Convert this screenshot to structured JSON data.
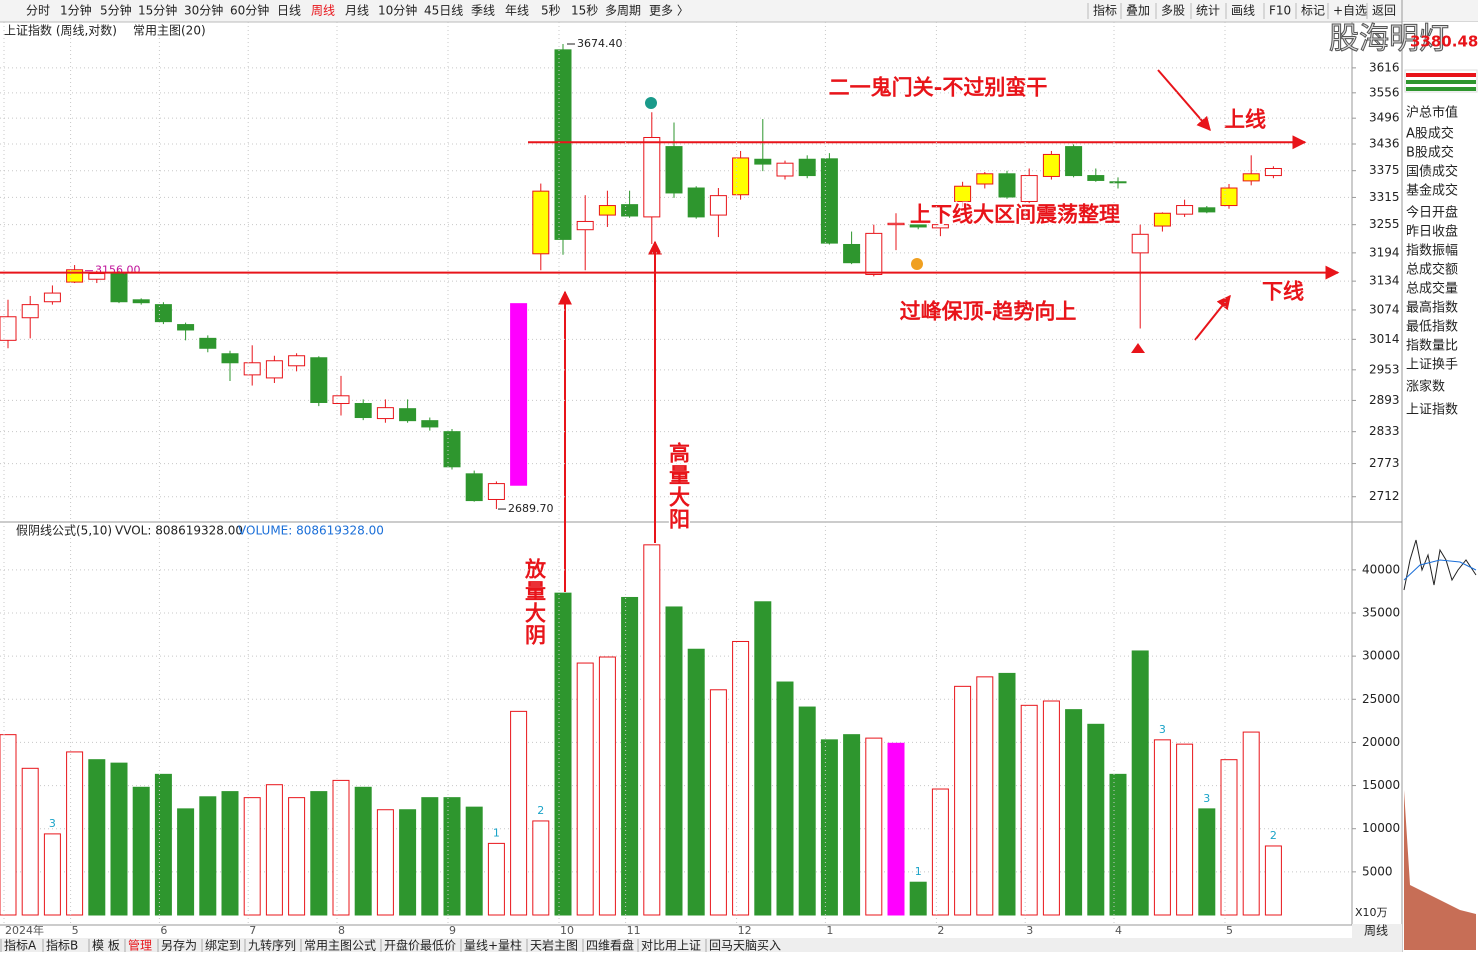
{
  "toolbar": {
    "periods": [
      "分时",
      "1分钟",
      "5分钟",
      "15分钟",
      "30分钟",
      "60分钟",
      "日线",
      "周线",
      "月线",
      "10分钟",
      "45日线",
      "季线",
      "年线",
      "5秒",
      "15秒",
      "多周期",
      "更多 〉"
    ],
    "active_period": 7,
    "tools": [
      "指标",
      "叠加",
      "多股",
      "统计",
      "画线",
      "F10",
      "标记",
      "+自选",
      "返回"
    ]
  },
  "watermark": "股海明灯",
  "sidebar": {
    "quote": "3380.48",
    "items": [
      "沪总市值",
      "A股成交",
      "B股成交",
      "国债成交",
      "基金成交",
      "今日开盘",
      "昨日收盘",
      "指数振幅",
      "总成交额",
      "总成交量",
      "最高指数",
      "最低指数",
      "指数量比",
      "上证换手",
      "涨家数",
      "上证指数"
    ]
  },
  "bottom_tabs": [
    "指标A",
    "指标B",
    "模 板",
    "管理",
    "另存为",
    "绑定到",
    "九转序列",
    "常用主图公式",
    "开盘价最低价",
    "量线+量柱",
    "天岩主图",
    "四维看盘",
    "对比用上证",
    "回马天脑买入"
  ],
  "active_tab": 3,
  "period_label": "周线",
  "chart_data": [
    {
      "type": "candlestick",
      "title": "上证指数 (周线,对数)",
      "subtitle": "常用主图(20)",
      "log_scale": true,
      "grid": true,
      "up_color": "#e8141a",
      "down_color": "#2e962e",
      "highlight_color": "#ff00ff",
      "ylim": [
        2670,
        3729
      ],
      "yticks": [
        3616,
        3556,
        3496,
        3436,
        3375,
        3315,
        3255,
        3194,
        3134,
        3074,
        3014,
        2953,
        2893,
        2833,
        2773,
        2712
      ],
      "ohlc": [
        [
          3012,
          3095,
          2996,
          3060
        ],
        [
          3058,
          3103,
          3016,
          3085
        ],
        [
          3091,
          3125,
          3085,
          3109
        ],
        [
          3132,
          3168,
          3130,
          3158
        ],
        [
          3138,
          3156,
          3130,
          3150
        ],
        [
          3150,
          3156,
          3088,
          3091
        ],
        [
          3095,
          3098,
          3085,
          3089
        ],
        [
          3085,
          3090,
          3045,
          3050
        ],
        [
          3044,
          3048,
          3012,
          3033
        ],
        [
          3016,
          3022,
          2988,
          2996
        ],
        [
          2985,
          2991,
          2931,
          2967
        ],
        [
          2943,
          3002,
          2922,
          2967
        ],
        [
          2937,
          2981,
          2927,
          2971
        ],
        [
          2961,
          2986,
          2950,
          2981
        ],
        [
          2977,
          2980,
          2882,
          2889
        ],
        [
          2887,
          2941,
          2864,
          2902
        ],
        [
          2887,
          2895,
          2855,
          2860
        ],
        [
          2858,
          2895,
          2850,
          2879
        ],
        [
          2877,
          2895,
          2850,
          2854
        ],
        [
          2854,
          2860,
          2835,
          2842
        ],
        [
          2833,
          2838,
          2762,
          2767
        ],
        [
          2754,
          2760,
          2703,
          2705
        ],
        [
          2707,
          2740,
          2689.7,
          2736
        ],
        [
          2733,
          3087,
          2733,
          3087
        ],
        [
          3192,
          3346,
          3157,
          3329
        ],
        [
          3660,
          3674.4,
          3190,
          3223
        ],
        [
          3244,
          3320,
          3157,
          3262
        ],
        [
          3276,
          3330,
          3250,
          3297
        ],
        [
          3299,
          3330,
          3270,
          3274
        ],
        [
          3272,
          3510,
          3213,
          3451
        ],
        [
          3430,
          3486,
          3314,
          3325
        ],
        [
          3336,
          3340,
          3268,
          3272
        ],
        [
          3276,
          3336,
          3228,
          3319
        ],
        [
          3321,
          3420,
          3310,
          3404
        ],
        [
          3401,
          3494,
          3374,
          3390
        ],
        [
          3363,
          3398,
          3355,
          3392
        ],
        [
          3401,
          3410,
          3358,
          3364
        ],
        [
          3402,
          3415,
          3212,
          3215
        ],
        [
          3212,
          3240,
          3170,
          3173
        ],
        [
          3148,
          3255,
          3144,
          3236
        ],
        [
          3255,
          3280,
          3200,
          3258
        ],
        [
          3258,
          3265,
          3245,
          3250
        ],
        [
          3248,
          3262,
          3230,
          3255
        ],
        [
          3306,
          3350,
          3290,
          3340
        ],
        [
          3345,
          3372,
          3335,
          3368
        ],
        [
          3368,
          3375,
          3312,
          3316
        ],
        [
          3306,
          3380,
          3300,
          3364
        ],
        [
          3362,
          3420,
          3355,
          3412
        ],
        [
          3430,
          3435,
          3360,
          3364
        ],
        [
          3364,
          3380,
          3350,
          3353
        ],
        [
          3350,
          3360,
          3335,
          3348
        ],
        [
          3194,
          3255,
          3036,
          3234
        ],
        [
          3252,
          3282,
          3240,
          3280
        ],
        [
          3278,
          3310,
          3272,
          3297
        ],
        [
          3292,
          3296,
          3280,
          3283
        ],
        [
          3297,
          3345,
          3290,
          3336
        ],
        [
          3352,
          3410,
          3342,
          3368
        ],
        [
          3364,
          3385,
          3358,
          3380
        ]
      ],
      "fill": [
        "#ffffff",
        "#ffffff",
        "#ffffff",
        "#ffff00",
        "#ffffff",
        "#2e962e",
        "#2e962e",
        "#2e962e",
        "#2e962e",
        "#2e962e",
        "#2e962e",
        "#ffffff",
        "#ffffff",
        "#ffffff",
        "#2e962e",
        "#ffffff",
        "#2e962e",
        "#ffffff",
        "#2e962e",
        "#2e962e",
        "#2e962e",
        "#2e962e",
        "#ffffff",
        "#ff00ff",
        "#ffff00",
        "#2e962e",
        "#ffffff",
        "#ffff00",
        "#2e962e",
        "#ffffff",
        "#2e962e",
        "#2e962e",
        "#ffffff",
        "#ffff00",
        "#2e962e",
        "#ffffff",
        "#2e962e",
        "#2e962e",
        "#2e962e",
        "#ffffff",
        "#ffffff",
        "#2e962e",
        "#ffffff",
        "#ffff00",
        "#ffff00",
        "#2e962e",
        "#ffffff",
        "#ffff00",
        "#2e962e",
        "#2e962e",
        "#2e962e",
        "#ffffff",
        "#ffff00",
        "#ffffff",
        "#2e962e",
        "#ffff00",
        "#ffff00",
        "#ffffff"
      ],
      "price_labels": [
        {
          "value": 3674.4,
          "label": "3674.40"
        },
        {
          "value": 2689.7,
          "label": "2689.70"
        },
        {
          "value": 3156,
          "label": "3156,00"
        }
      ],
      "levels": [
        {
          "label": "上线",
          "value": 3440
        },
        {
          "label": "下线",
          "value": 3152
        }
      ],
      "annotations": [
        "二一鬼门关-不过别蛮干",
        "上下线大区间震荡整理",
        "过峰保顶-趋势向上",
        "放量大阴",
        "高量大阳"
      ]
    },
    {
      "type": "bar",
      "title": "假阴线公式(5,10)",
      "labels": [
        "VVOL: 808619328.00",
        "VOLUME: 808619328.00"
      ],
      "unit": "X10万",
      "grid": true,
      "up_color": "#e8141a",
      "down_color": "#2e962e",
      "highlight_color": "#ff00ff",
      "ylim": [
        0,
        43460
      ],
      "yticks": [
        5000,
        10000,
        15000,
        20000,
        25000,
        30000,
        35000,
        40000
      ],
      "categories": [
        "2024年",
        null,
        null,
        "5",
        null,
        null,
        null,
        "6",
        null,
        null,
        null,
        "7",
        null,
        null,
        null,
        "8",
        null,
        null,
        null,
        null,
        "9",
        null,
        null,
        null,
        null,
        "10",
        null,
        null,
        "11",
        null,
        null,
        null,
        null,
        "12",
        null,
        null,
        null,
        "1",
        null,
        null,
        null,
        null,
        "2",
        null,
        null,
        null,
        "3",
        null,
        null,
        null,
        "4",
        null,
        null,
        null,
        null,
        "5",
        null,
        null
      ],
      "values": [
        20900,
        17000,
        9400,
        18900,
        18000,
        17600,
        14800,
        16300,
        12300,
        13700,
        14300,
        13600,
        15100,
        13600,
        14300,
        15600,
        14800,
        12200,
        12200,
        13600,
        13600,
        12500,
        8300,
        23600,
        10900,
        37300,
        29200,
        29900,
        36800,
        42900,
        35700,
        30800,
        26100,
        31700,
        36300,
        27000,
        24100,
        20300,
        20900,
        20500,
        19900,
        3800,
        14600,
        26500,
        27600,
        28000,
        24300,
        24800,
        23800,
        22100,
        16300,
        30600,
        20300,
        19800,
        12300,
        18000,
        21200,
        8000
      ],
      "fill": [
        "#ffffff",
        "#ffffff",
        "#ffffff",
        "#ffffff",
        "#2e962e",
        "#2e962e",
        "#2e962e",
        "#2e962e",
        "#2e962e",
        "#2e962e",
        "#2e962e",
        "#ffffff",
        "#ffffff",
        "#ffffff",
        "#2e962e",
        "#ffffff",
        "#2e962e",
        "#ffffff",
        "#2e962e",
        "#2e962e",
        "#2e962e",
        "#2e962e",
        "#ffffff",
        "#ffffff",
        "#ffffff",
        "#2e962e",
        "#ffffff",
        "#ffffff",
        "#2e962e",
        "#ffffff",
        "#2e962e",
        "#2e962e",
        "#ffffff",
        "#ffffff",
        "#2e962e",
        "#2e962e",
        "#2e962e",
        "#2e962e",
        "#2e962e",
        "#ffffff",
        "#ff00ff",
        "#2e962e",
        "#ffffff",
        "#ffffff",
        "#ffffff",
        "#2e962e",
        "#ffffff",
        "#ffffff",
        "#2e962e",
        "#2e962e",
        "#2e962e",
        "#2e962e",
        "#ffffff",
        "#ffffff",
        "#2e962e",
        "#ffffff",
        "#ffffff",
        "#ffffff"
      ],
      "signals": [
        null,
        null,
        3,
        null,
        null,
        null,
        null,
        null,
        null,
        null,
        null,
        null,
        null,
        null,
        null,
        null,
        null,
        null,
        null,
        null,
        null,
        null,
        1,
        null,
        2,
        null,
        null,
        null,
        null,
        null,
        null,
        null,
        null,
        null,
        null,
        null,
        null,
        null,
        null,
        null,
        null,
        1,
        null,
        null,
        null,
        null,
        null,
        null,
        null,
        null,
        null,
        null,
        3,
        null,
        3,
        null,
        null,
        2
      ]
    }
  ]
}
